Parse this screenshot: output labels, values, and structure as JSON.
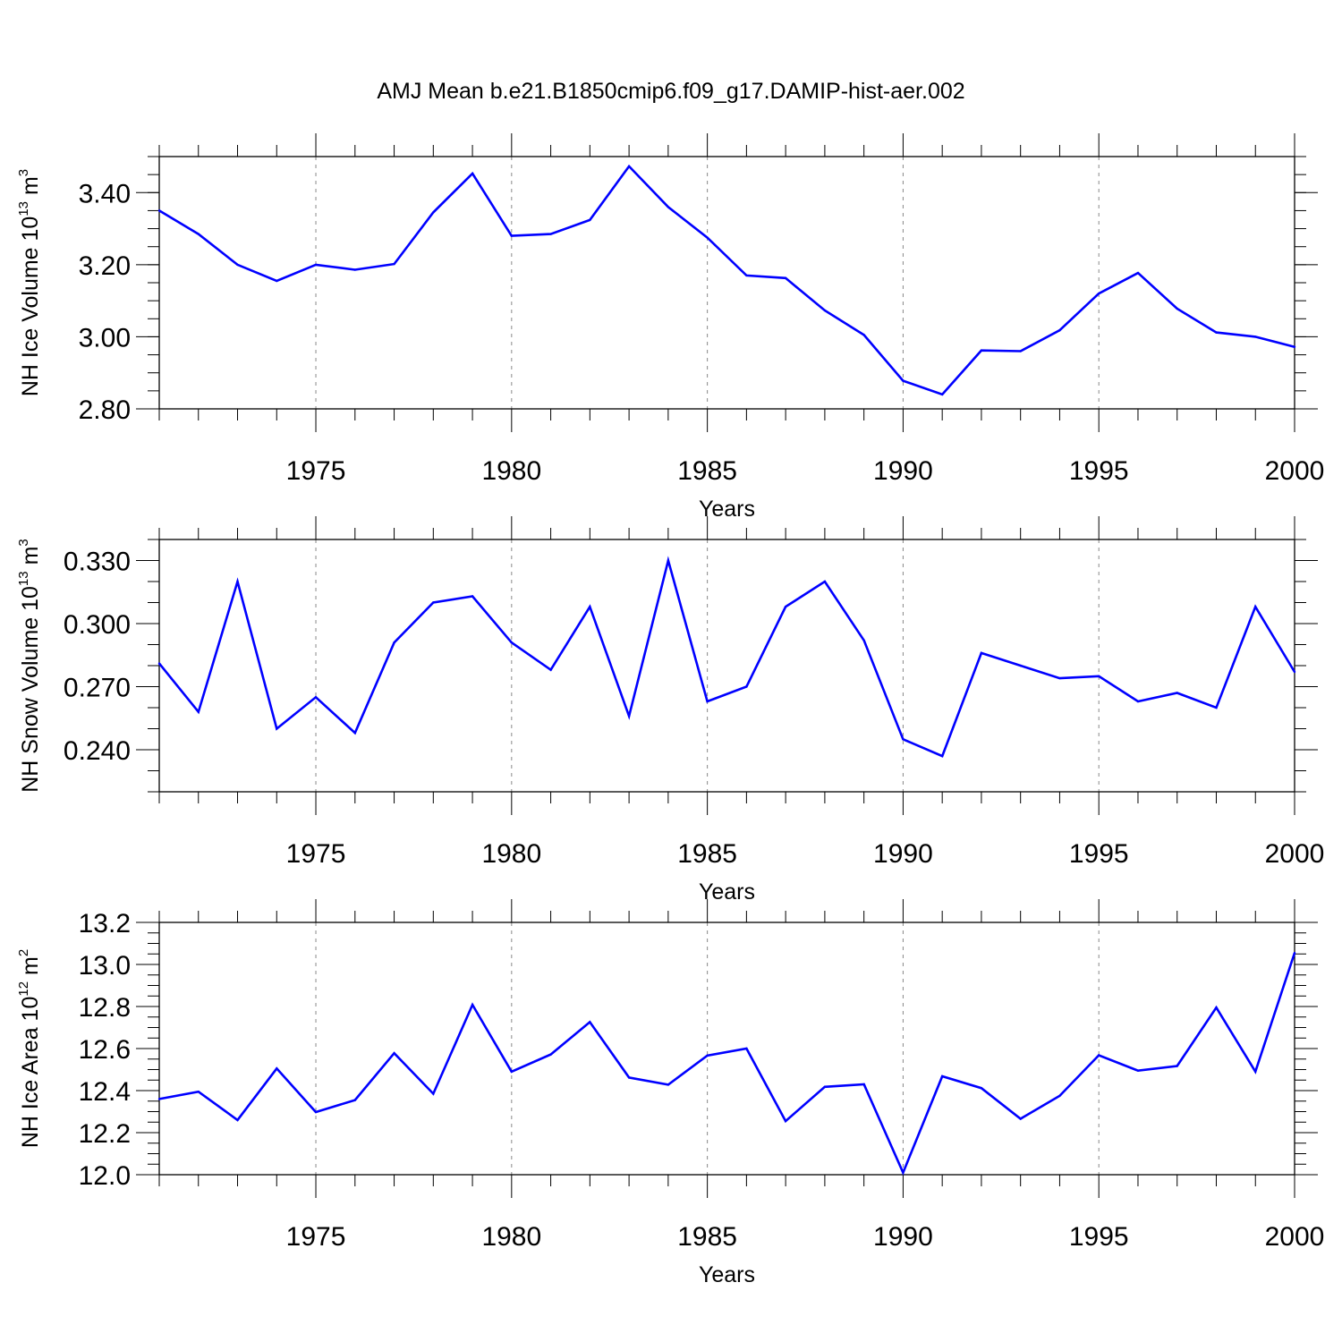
{
  "figure_title": "AMJ Mean b.e21.B1850cmip6.f09_g17.DAMIP-hist-aer.002",
  "line_color": "#0000ff",
  "grid_color": "#888888",
  "chart_data": [
    {
      "type": "line",
      "ylabel_main": "NH Ice Volume 10",
      "ylabel_exp": "13",
      "ylabel_unit": " m",
      "ylabel_unit_exp": "3",
      "xlabel": "Years",
      "xlim": [
        1971,
        2000
      ],
      "ylim": [
        2.8,
        3.5
      ],
      "yticks": [
        2.8,
        3.0,
        3.2,
        3.4
      ],
      "ytick_labels": [
        "2.80",
        "3.00",
        "3.20",
        "3.40"
      ],
      "yminor_step": 0.05,
      "xticks": [
        1975,
        1980,
        1985,
        1990,
        1995,
        2000
      ],
      "xtick_labels": [
        "1975",
        "1980",
        "1985",
        "1990",
        "1995",
        "2000"
      ],
      "x": [
        1971,
        1972,
        1973,
        1974,
        1975,
        1976,
        1977,
        1978,
        1979,
        1980,
        1981,
        1982,
        1983,
        1984,
        1985,
        1986,
        1987,
        1988,
        1989,
        1990,
        1991,
        1992,
        1993,
        1994,
        1995,
        1996,
        1997,
        1998,
        1999,
        2000
      ],
      "values": [
        3.35,
        3.285,
        3.2,
        3.155,
        3.2,
        3.186,
        3.202,
        3.345,
        3.453,
        3.28,
        3.285,
        3.324,
        3.473,
        3.36,
        3.275,
        3.17,
        3.163,
        3.073,
        3.005,
        2.878,
        2.84,
        2.962,
        2.96,
        3.018,
        3.12,
        3.177,
        3.078,
        3.012,
        3.0,
        2.972
      ]
    },
    {
      "type": "line",
      "ylabel_main": "NH Snow Volume 10",
      "ylabel_exp": "13",
      "ylabel_unit": " m",
      "ylabel_unit_exp": "3",
      "xlabel": "Years",
      "xlim": [
        1971,
        2000
      ],
      "ylim": [
        0.22,
        0.34
      ],
      "yticks": [
        0.24,
        0.27,
        0.3,
        0.33
      ],
      "ytick_labels": [
        "0.240",
        "0.270",
        "0.300",
        "0.330"
      ],
      "yminor_step": 0.01,
      "xticks": [
        1975,
        1980,
        1985,
        1990,
        1995,
        2000
      ],
      "xtick_labels": [
        "1975",
        "1980",
        "1985",
        "1990",
        "1995",
        "2000"
      ],
      "x": [
        1971,
        1972,
        1973,
        1974,
        1975,
        1976,
        1977,
        1978,
        1979,
        1980,
        1981,
        1982,
        1983,
        1984,
        1985,
        1986,
        1987,
        1988,
        1989,
        1990,
        1991,
        1992,
        1993,
        1994,
        1995,
        1996,
        1997,
        1998,
        1999,
        2000
      ],
      "values": [
        0.281,
        0.258,
        0.32,
        0.25,
        0.265,
        0.248,
        0.291,
        0.31,
        0.313,
        0.291,
        0.278,
        0.308,
        0.256,
        0.33,
        0.263,
        0.27,
        0.308,
        0.32,
        0.292,
        0.245,
        0.237,
        0.286,
        0.28,
        0.274,
        0.275,
        0.263,
        0.267,
        0.26,
        0.308,
        0.277
      ]
    },
    {
      "type": "line",
      "ylabel_main": "NH Ice Area 10",
      "ylabel_exp": "12",
      "ylabel_unit": " m",
      "ylabel_unit_exp": "2",
      "xlabel": "Years",
      "xlim": [
        1971,
        2000
      ],
      "ylim": [
        12.0,
        13.2
      ],
      "yticks": [
        12.0,
        12.2,
        12.4,
        12.6,
        12.8,
        13.0,
        13.2
      ],
      "ytick_labels": [
        "12.0",
        "12.2",
        "12.4",
        "12.6",
        "12.8",
        "13.0",
        "13.2"
      ],
      "yminor_step": 0.05,
      "xticks": [
        1975,
        1980,
        1985,
        1990,
        1995,
        2000
      ],
      "xtick_labels": [
        "1975",
        "1980",
        "1985",
        "1990",
        "1995",
        "2000"
      ],
      "x": [
        1971,
        1972,
        1973,
        1974,
        1975,
        1976,
        1977,
        1978,
        1979,
        1980,
        1981,
        1982,
        1983,
        1984,
        1985,
        1986,
        1987,
        1988,
        1989,
        1990,
        1991,
        1992,
        1993,
        1994,
        1995,
        1996,
        1997,
        1998,
        1999,
        2000
      ],
      "values": [
        12.36,
        12.395,
        12.26,
        12.505,
        12.298,
        12.355,
        12.578,
        12.385,
        12.808,
        12.49,
        12.572,
        12.726,
        12.462,
        12.428,
        12.567,
        12.6,
        12.255,
        12.418,
        12.43,
        12.01,
        12.468,
        12.412,
        12.266,
        12.375,
        12.568,
        12.495,
        12.517,
        12.795,
        12.49,
        13.055
      ]
    }
  ]
}
